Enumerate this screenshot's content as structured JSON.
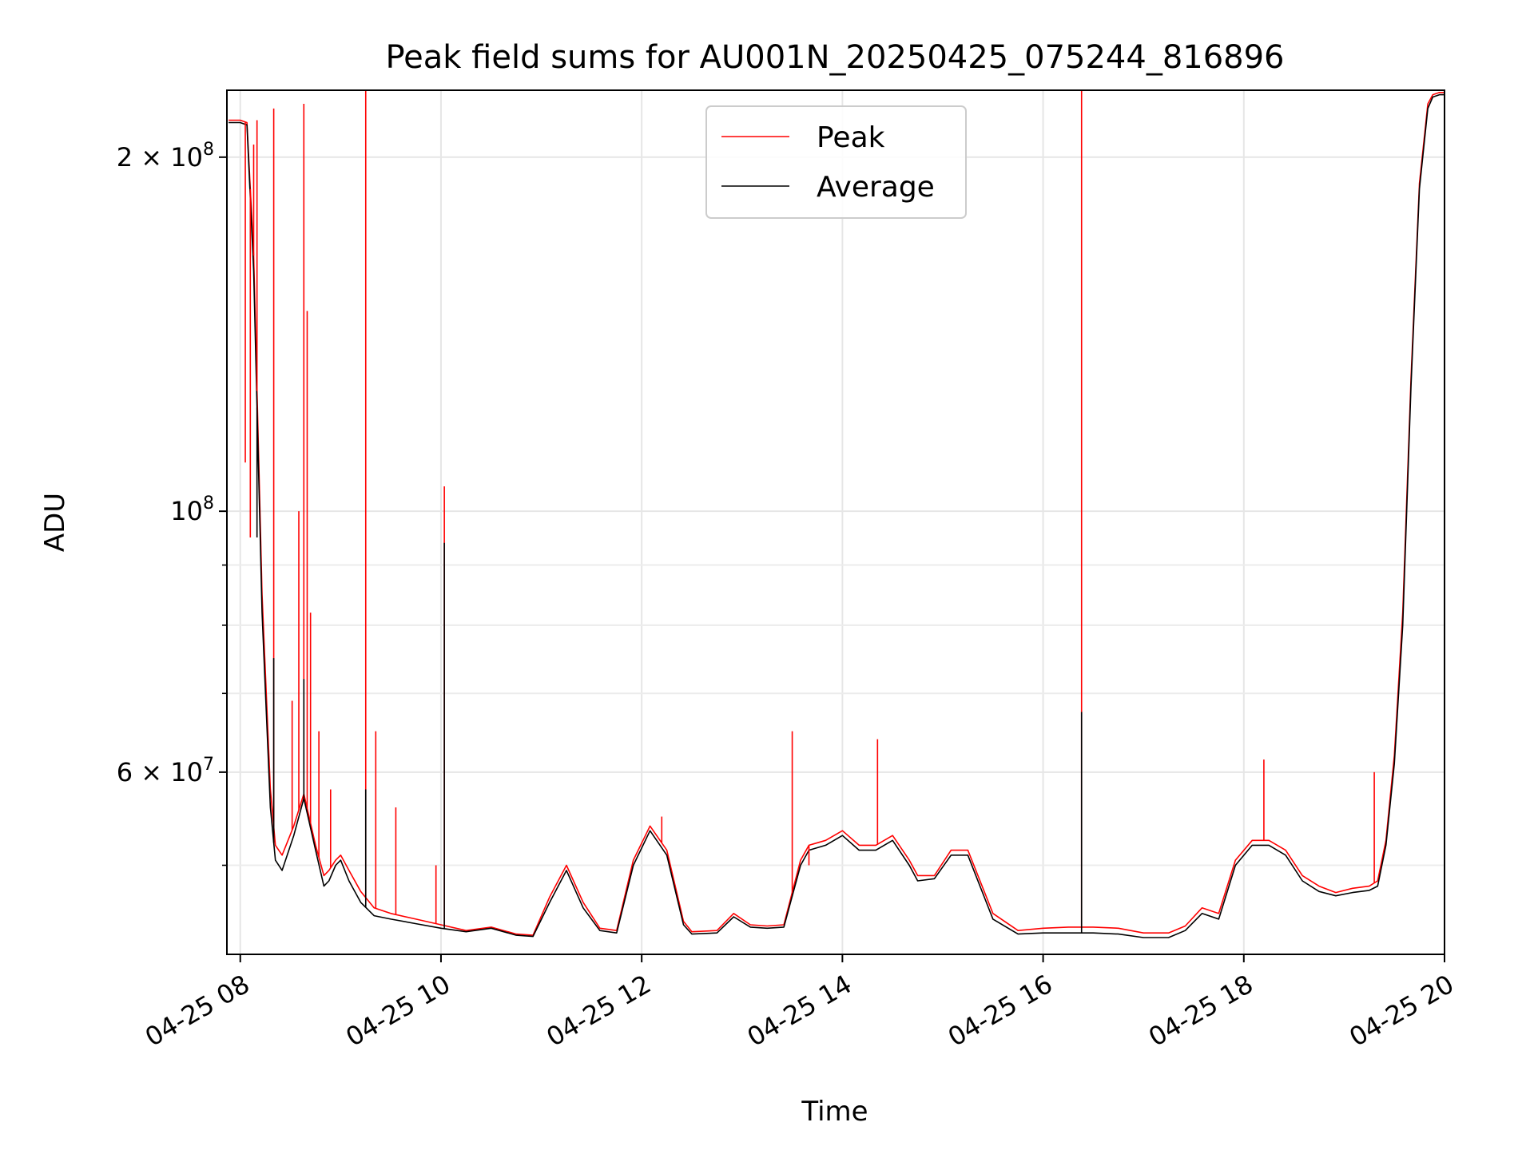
{
  "chart_data": {
    "type": "line",
    "title": "Peak field sums for AU001N_20250425_075244_816896",
    "xlabel": "Time",
    "ylabel": "ADU",
    "xlim": [
      "2025-04-25T07:52:00",
      "2025-04-25T20:00:00"
    ],
    "ylim": [
      42000000,
      228000000
    ],
    "yscale": "log",
    "grid": true,
    "legend": {
      "placement": "upper-center",
      "entries": [
        "Peak",
        "Average"
      ]
    },
    "x_ticks": [
      {
        "value": "2025-04-25T08:00:00",
        "label": "04-25 08"
      },
      {
        "value": "2025-04-25T10:00:00",
        "label": "04-25 10"
      },
      {
        "value": "2025-04-25T12:00:00",
        "label": "04-25 12"
      },
      {
        "value": "2025-04-25T14:00:00",
        "label": "04-25 14"
      },
      {
        "value": "2025-04-25T16:00:00",
        "label": "04-25 16"
      },
      {
        "value": "2025-04-25T18:00:00",
        "label": "04-25 18"
      },
      {
        "value": "2025-04-25T20:00:00",
        "label": "04-25 20"
      }
    ],
    "y_ticks": [
      {
        "value": 200000000,
        "base": "2 × 10",
        "exp": "8"
      },
      {
        "value": 100000000,
        "base": "10",
        "exp": "8"
      },
      {
        "value": 60000000,
        "base": "6 × 10",
        "exp": "7"
      }
    ],
    "y_minor_ticks": [
      50000000,
      70000000,
      80000000,
      90000000
    ],
    "series": [
      {
        "name": "Peak",
        "color": "#ff0000",
        "x": [
          "2025-04-25T07:53:00",
          "2025-04-25T08:00:00",
          "2025-04-25T08:04:00",
          "2025-04-25T08:08:00",
          "2025-04-25T08:13:00",
          "2025-04-25T08:18:00",
          "2025-04-25T08:21:00",
          "2025-04-25T08:25:00",
          "2025-04-25T08:32:00",
          "2025-04-25T08:38:00",
          "2025-04-25T08:45:00",
          "2025-04-25T08:50:00",
          "2025-04-25T08:53:00",
          "2025-04-25T08:57:00",
          "2025-04-25T09:00:00",
          "2025-04-25T09:05:00",
          "2025-04-25T09:12:00",
          "2025-04-25T09:20:00",
          "2025-04-25T09:30:00",
          "2025-04-25T09:45:00",
          "2025-04-25T10:00:00",
          "2025-04-25T10:15:00",
          "2025-04-25T10:30:00",
          "2025-04-25T10:45:00",
          "2025-04-25T10:55:00",
          "2025-04-25T11:05:00",
          "2025-04-25T11:15:00",
          "2025-04-25T11:25:00",
          "2025-04-25T11:35:00",
          "2025-04-25T11:45:00",
          "2025-04-25T11:55:00",
          "2025-04-25T12:05:00",
          "2025-04-25T12:15:00",
          "2025-04-25T12:25:00",
          "2025-04-25T12:30:00",
          "2025-04-25T12:45:00",
          "2025-04-25T12:55:00",
          "2025-04-25T13:05:00",
          "2025-04-25T13:15:00",
          "2025-04-25T13:25:00",
          "2025-04-25T13:35:00",
          "2025-04-25T13:40:00",
          "2025-04-25T13:50:00",
          "2025-04-25T14:00:00",
          "2025-04-25T14:10:00",
          "2025-04-25T14:20:00",
          "2025-04-25T14:30:00",
          "2025-04-25T14:40:00",
          "2025-04-25T14:45:00",
          "2025-04-25T14:55:00",
          "2025-04-25T15:05:00",
          "2025-04-25T15:15:00",
          "2025-04-25T15:30:00",
          "2025-04-25T15:45:00",
          "2025-04-25T16:00:00",
          "2025-04-25T16:15:00",
          "2025-04-25T16:30:00",
          "2025-04-25T16:45:00",
          "2025-04-25T17:00:00",
          "2025-04-25T17:15:00",
          "2025-04-25T17:25:00",
          "2025-04-25T17:35:00",
          "2025-04-25T17:45:00",
          "2025-04-25T17:55:00",
          "2025-04-25T18:05:00",
          "2025-04-25T18:15:00",
          "2025-04-25T18:25:00",
          "2025-04-25T18:35:00",
          "2025-04-25T18:45:00",
          "2025-04-25T18:55:00",
          "2025-04-25T19:05:00",
          "2025-04-25T19:15:00",
          "2025-04-25T19:20:00",
          "2025-04-25T19:25:00",
          "2025-04-25T19:30:00",
          "2025-04-25T19:35:00",
          "2025-04-25T19:40:00",
          "2025-04-25T19:45:00",
          "2025-04-25T19:50:00",
          "2025-04-25T19:53:00",
          "2025-04-25T19:57:00",
          "2025-04-25T20:00:00"
        ],
        "y": [
          215000000,
          215000000,
          214000000,
          165000000,
          85000000,
          58000000,
          52000000,
          51000000,
          54000000,
          57500000,
          52000000,
          49000000,
          49500000,
          50500000,
          51000000,
          49500000,
          47500000,
          46000000,
          45500000,
          45000000,
          44500000,
          44000000,
          44300000,
          43700000,
          43600000,
          47000000,
          50000000,
          46500000,
          44200000,
          44000000,
          50500000,
          54000000,
          51500000,
          44800000,
          43900000,
          44000000,
          45500000,
          44500000,
          44400000,
          44500000,
          50500000,
          52000000,
          52500000,
          53500000,
          52000000,
          52000000,
          53000000,
          50500000,
          49000000,
          49000000,
          51500000,
          51500000,
          45500000,
          44000000,
          44200000,
          44300000,
          44300000,
          44200000,
          43800000,
          43800000,
          44400000,
          46000000,
          45500000,
          50500000,
          52500000,
          52500000,
          51500000,
          49000000,
          48000000,
          47400000,
          47800000,
          48000000,
          48500000,
          52500000,
          62000000,
          82000000,
          130000000,
          190000000,
          222000000,
          226000000,
          227000000,
          227000000
        ]
      },
      {
        "name": "Average",
        "color": "#000000",
        "x": [
          "2025-04-25T07:53:00",
          "2025-04-25T08:00:00",
          "2025-04-25T08:04:00",
          "2025-04-25T08:08:00",
          "2025-04-25T08:13:00",
          "2025-04-25T08:18:00",
          "2025-04-25T08:21:00",
          "2025-04-25T08:25:00",
          "2025-04-25T08:32:00",
          "2025-04-25T08:38:00",
          "2025-04-25T08:45:00",
          "2025-04-25T08:50:00",
          "2025-04-25T08:53:00",
          "2025-04-25T08:57:00",
          "2025-04-25T09:00:00",
          "2025-04-25T09:05:00",
          "2025-04-25T09:12:00",
          "2025-04-25T09:20:00",
          "2025-04-25T09:30:00",
          "2025-04-25T09:45:00",
          "2025-04-25T10:00:00",
          "2025-04-25T10:15:00",
          "2025-04-25T10:30:00",
          "2025-04-25T10:45:00",
          "2025-04-25T10:55:00",
          "2025-04-25T11:05:00",
          "2025-04-25T11:15:00",
          "2025-04-25T11:25:00",
          "2025-04-25T11:35:00",
          "2025-04-25T11:45:00",
          "2025-04-25T11:55:00",
          "2025-04-25T12:05:00",
          "2025-04-25T12:15:00",
          "2025-04-25T12:25:00",
          "2025-04-25T12:30:00",
          "2025-04-25T12:45:00",
          "2025-04-25T12:55:00",
          "2025-04-25T13:05:00",
          "2025-04-25T13:15:00",
          "2025-04-25T13:25:00",
          "2025-04-25T13:35:00",
          "2025-04-25T13:40:00",
          "2025-04-25T13:50:00",
          "2025-04-25T14:00:00",
          "2025-04-25T14:10:00",
          "2025-04-25T14:20:00",
          "2025-04-25T14:30:00",
          "2025-04-25T14:40:00",
          "2025-04-25T14:45:00",
          "2025-04-25T14:55:00",
          "2025-04-25T15:05:00",
          "2025-04-25T15:15:00",
          "2025-04-25T15:30:00",
          "2025-04-25T15:45:00",
          "2025-04-25T16:00:00",
          "2025-04-25T16:15:00",
          "2025-04-25T16:30:00",
          "2025-04-25T16:45:00",
          "2025-04-25T17:00:00",
          "2025-04-25T17:15:00",
          "2025-04-25T17:25:00",
          "2025-04-25T17:35:00",
          "2025-04-25T17:45:00",
          "2025-04-25T17:55:00",
          "2025-04-25T18:05:00",
          "2025-04-25T18:15:00",
          "2025-04-25T18:25:00",
          "2025-04-25T18:35:00",
          "2025-04-25T18:45:00",
          "2025-04-25T18:55:00",
          "2025-04-25T19:05:00",
          "2025-04-25T19:15:00",
          "2025-04-25T19:20:00",
          "2025-04-25T19:25:00",
          "2025-04-25T19:30:00",
          "2025-04-25T19:35:00",
          "2025-04-25T19:40:00",
          "2025-04-25T19:45:00",
          "2025-04-25T19:50:00",
          "2025-04-25T19:53:00",
          "2025-04-25T19:57:00",
          "2025-04-25T20:00:00"
        ],
        "y": [
          214000000,
          214000000,
          213000000,
          160000000,
          82000000,
          56000000,
          50500000,
          49500000,
          53000000,
          57000000,
          51500000,
          48000000,
          48500000,
          50000000,
          50500000,
          48500000,
          46500000,
          45300000,
          45000000,
          44600000,
          44200000,
          43900000,
          44200000,
          43600000,
          43500000,
          46500000,
          49500000,
          46000000,
          44000000,
          43800000,
          50000000,
          53500000,
          51000000,
          44500000,
          43700000,
          43800000,
          45200000,
          44300000,
          44200000,
          44300000,
          50000000,
          51500000,
          52000000,
          53000000,
          51500000,
          51500000,
          52500000,
          50000000,
          48500000,
          48700000,
          51000000,
          51000000,
          45000000,
          43700000,
          43800000,
          43800000,
          43800000,
          43700000,
          43400000,
          43400000,
          44000000,
          45500000,
          45000000,
          50000000,
          52000000,
          52000000,
          51000000,
          48500000,
          47500000,
          47100000,
          47400000,
          47600000,
          48000000,
          52000000,
          61000000,
          80000000,
          128000000,
          188000000,
          220000000,
          225000000,
          226000000,
          226000000
        ]
      }
    ],
    "peak_spikes": [
      {
        "x": "2025-04-25T08:03:00",
        "y": 110000000
      },
      {
        "x": "2025-04-25T08:06:00",
        "y": 95000000
      },
      {
        "x": "2025-04-25T08:08:00",
        "y": 205000000
      },
      {
        "x": "2025-04-25T08:10:00",
        "y": 215000000
      },
      {
        "x": "2025-04-25T08:20:00",
        "y": 220000000
      },
      {
        "x": "2025-04-25T08:31:00",
        "y": 69000000
      },
      {
        "x": "2025-04-25T08:35:00",
        "y": 100000000
      },
      {
        "x": "2025-04-25T08:38:00",
        "y": 222000000
      },
      {
        "x": "2025-04-25T08:40:00",
        "y": 148000000
      },
      {
        "x": "2025-04-25T08:42:00",
        "y": 82000000
      },
      {
        "x": "2025-04-25T08:47:00",
        "y": 65000000
      },
      {
        "x": "2025-04-25T08:54:00",
        "y": 58000000
      },
      {
        "x": "2025-04-25T09:15:00",
        "y": 228000000
      },
      {
        "x": "2025-04-25T09:21:00",
        "y": 65000000
      },
      {
        "x": "2025-04-25T09:33:00",
        "y": 56000000
      },
      {
        "x": "2025-04-25T09:57:00",
        "y": 50000000
      },
      {
        "x": "2025-04-25T10:02:00",
        "y": 105000000
      },
      {
        "x": "2025-04-25T12:12:00",
        "y": 55000000
      },
      {
        "x": "2025-04-25T13:30:00",
        "y": 65000000
      },
      {
        "x": "2025-04-25T13:40:00",
        "y": 50000000
      },
      {
        "x": "2025-04-25T14:21:00",
        "y": 64000000
      },
      {
        "x": "2025-04-25T16:23:00",
        "y": 228000000
      },
      {
        "x": "2025-04-25T18:12:00",
        "y": 61500000
      },
      {
        "x": "2025-04-25T19:18:00",
        "y": 60000000
      }
    ],
    "average_spikes": [
      {
        "x": "2025-04-25T08:10:00",
        "y": 95000000
      },
      {
        "x": "2025-04-25T08:20:00",
        "y": 75000000
      },
      {
        "x": "2025-04-25T08:38:00",
        "y": 72000000
      },
      {
        "x": "2025-04-25T09:15:00",
        "y": 58000000
      },
      {
        "x": "2025-04-25T10:02:00",
        "y": 94000000
      },
      {
        "x": "2025-04-25T16:23:00",
        "y": 67500000
      }
    ]
  }
}
